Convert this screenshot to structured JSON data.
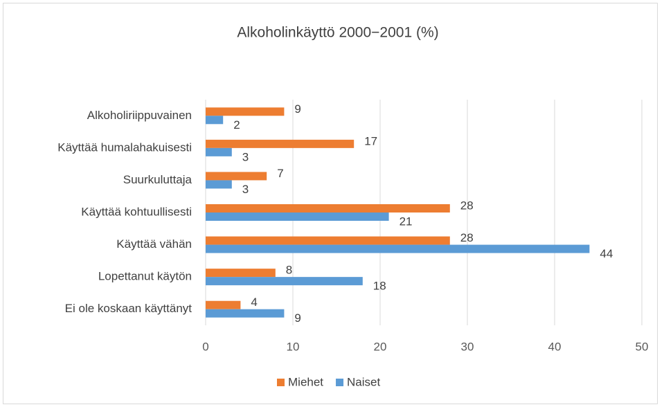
{
  "chart_data": {
    "type": "bar",
    "orientation": "horizontal",
    "title": "Alkoholinkäyttö 2000−2001 (%)",
    "categories": [
      "Alkoholiriippuvainen",
      "Käyttää humalahakuisesti",
      "Suurkuluttaja",
      "Käyttää kohtuullisesti",
      "Käyttää vähän",
      "Lopettanut käytön",
      "Ei ole koskaan käyttänyt"
    ],
    "series": [
      {
        "name": "Miehet",
        "color": "#ed7d31",
        "values": [
          9,
          17,
          7,
          28,
          28,
          8,
          4
        ]
      },
      {
        "name": "Naiset",
        "color": "#5b9bd5",
        "values": [
          2,
          3,
          3,
          21,
          44,
          18,
          9
        ]
      }
    ],
    "xlim": [
      0,
      50
    ],
    "xticks": [
      0,
      10,
      20,
      30,
      40,
      50
    ],
    "grid": true,
    "legend": "bottom"
  }
}
